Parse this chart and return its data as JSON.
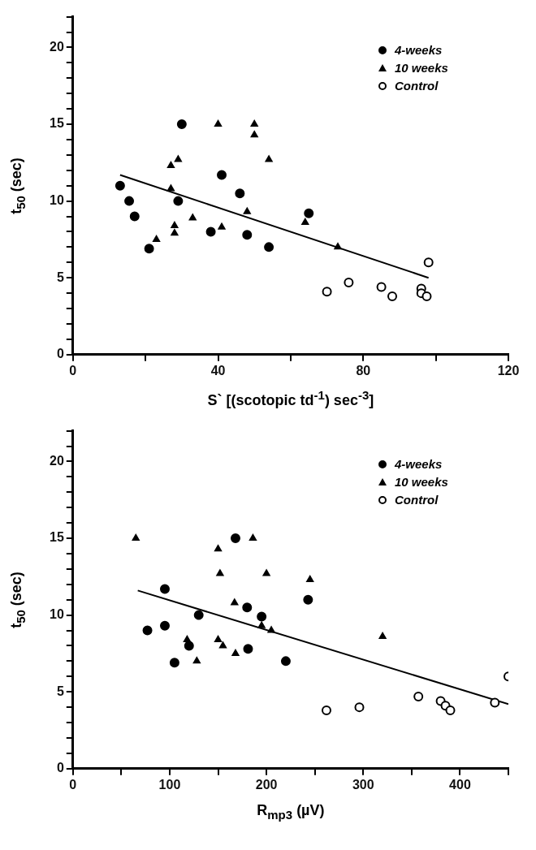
{
  "chart_data": [
    {
      "type": "scatter",
      "xlabel": "S` [(scotopic td$^{-1}$) sec$^{-3}$]",
      "ylabel": "t$_{50}$ (sec)",
      "xlim": [
        0,
        120
      ],
      "ylim": [
        0,
        22
      ],
      "xticks": [
        0,
        {
          "value": 20,
          "label": null
        },
        40,
        {
          "value": 60,
          "label": null
        },
        80,
        {
          "value": 100,
          "label": null
        },
        120
      ],
      "yticks": [
        0,
        {
          "value": 1,
          "label": null
        },
        {
          "value": 2,
          "label": null
        },
        {
          "value": 3,
          "label": null
        },
        {
          "value": 4,
          "label": null
        },
        5,
        {
          "value": 6,
          "label": null
        },
        {
          "value": 7,
          "label": null
        },
        {
          "value": 8,
          "label": null
        },
        {
          "value": 9,
          "label": null
        },
        10,
        {
          "value": 11,
          "label": null
        },
        {
          "value": 12,
          "label": null
        },
        {
          "value": 13,
          "label": null
        },
        {
          "value": 14,
          "label": null
        },
        15,
        {
          "value": 16,
          "label": null
        },
        {
          "value": 17,
          "label": null
        },
        {
          "value": 18,
          "label": null
        },
        {
          "value": 19,
          "label": null
        },
        20,
        {
          "value": 21,
          "label": null
        },
        {
          "value": 22,
          "label": null
        }
      ],
      "grid": false,
      "legend": "top right",
      "series": [
        {
          "name": "4-weeks",
          "color": "#000000",
          "marker": "circle",
          "x": [
            13,
            15.5,
            17,
            21,
            29,
            30,
            38,
            41,
            46,
            48,
            54,
            65
          ],
          "values": [
            11,
            10,
            9,
            6.9,
            10,
            15,
            8,
            11.7,
            10.5,
            7.8,
            7,
            9.2
          ]
        },
        {
          "name": "10 weeks",
          "color": "#000000",
          "marker": "triangle",
          "x": [
            23,
            27,
            27,
            28,
            28,
            29,
            33,
            40,
            41,
            48,
            50,
            50,
            54,
            64,
            73
          ],
          "values": [
            7.5,
            12.3,
            10.8,
            8.4,
            7.9,
            12.7,
            8.9,
            15,
            8.3,
            9.3,
            15,
            14.3,
            12.7,
            8.6,
            7
          ]
        },
        {
          "name": "Control",
          "color": "#ffffff",
          "marker": "circle",
          "x": [
            70,
            76,
            85,
            88,
            96,
            96,
            97.5,
            98
          ],
          "values": [
            4.1,
            4.7,
            4.4,
            3.8,
            4.3,
            4.0,
            3.8,
            6
          ]
        },
        {
          "type": "line",
          "color": "#000000",
          "marker": "none",
          "x": [
            13,
            98
          ],
          "values": [
            11.7,
            5.0
          ]
        }
      ]
    },
    {
      "type": "scatter",
      "xlabel": "R$_{mp3}$ (µV)",
      "ylabel": "t$_{50}$ (sec)",
      "xlim": [
        0,
        450
      ],
      "ylim": [
        0,
        22
      ],
      "xticks": [
        0,
        {
          "value": 50,
          "label": null
        },
        100,
        {
          "value": 150,
          "label": null
        },
        200,
        {
          "value": 250,
          "label": null
        },
        300,
        {
          "value": 350,
          "label": null
        },
        400,
        {
          "value": 450,
          "label": null
        }
      ],
      "yticks": [
        0,
        {
          "value": 1,
          "label": null
        },
        {
          "value": 2,
          "label": null
        },
        {
          "value": 3,
          "label": null
        },
        {
          "value": 4,
          "label": null
        },
        5,
        {
          "value": 6,
          "label": null
        },
        {
          "value": 7,
          "label": null
        },
        {
          "value": 8,
          "label": null
        },
        {
          "value": 9,
          "label": null
        },
        10,
        {
          "value": 11,
          "label": null
        },
        {
          "value": 12,
          "label": null
        },
        {
          "value": 13,
          "label": null
        },
        {
          "value": 14,
          "label": null
        },
        15,
        {
          "value": 16,
          "label": null
        },
        {
          "value": 17,
          "label": null
        },
        {
          "value": 18,
          "label": null
        },
        {
          "value": 19,
          "label": null
        },
        20,
        {
          "value": 21,
          "label": null
        },
        {
          "value": 22,
          "label": null
        }
      ],
      "grid": false,
      "legend": "top right",
      "series": [
        {
          "name": "4-weeks",
          "color": "#000000",
          "marker": "circle",
          "x": [
            77,
            95,
            95,
            105,
            120,
            130,
            168,
            180,
            181,
            195,
            220,
            243
          ],
          "values": [
            9,
            11.7,
            9.3,
            6.9,
            8,
            10,
            15,
            10.5,
            7.8,
            9.9,
            7,
            11
          ]
        },
        {
          "name": "10 weeks",
          "color": "#000000",
          "marker": "triangle",
          "x": [
            65,
            118,
            128,
            150,
            152,
            150,
            155,
            167,
            168,
            186,
            195,
            200,
            205,
            245,
            320
          ],
          "values": [
            15,
            8.4,
            7,
            14.3,
            12.7,
            8.4,
            8,
            10.8,
            7.5,
            15,
            9.3,
            12.7,
            9,
            12.3,
            8.6
          ]
        },
        {
          "name": "Control",
          "color": "#ffffff",
          "marker": "circle",
          "x": [
            262,
            296,
            357,
            380,
            385,
            390,
            436,
            450
          ],
          "values": [
            3.8,
            4,
            4.7,
            4.4,
            4.1,
            3.8,
            4.3,
            6
          ]
        },
        {
          "type": "line",
          "color": "#000000",
          "marker": "none",
          "x": [
            67,
            450
          ],
          "values": [
            11.6,
            4.2
          ]
        }
      ]
    }
  ]
}
